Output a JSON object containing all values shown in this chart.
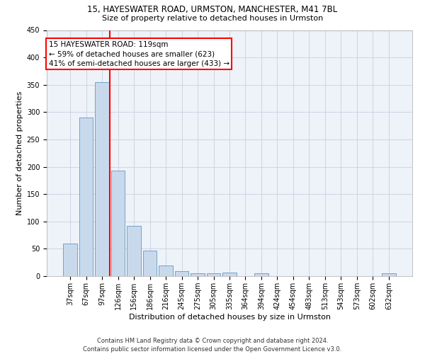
{
  "title1": "15, HAYESWATER ROAD, URMSTON, MANCHESTER, M41 7BL",
  "title2": "Size of property relative to detached houses in Urmston",
  "xlabel": "Distribution of detached houses by size in Urmston",
  "ylabel": "Number of detached properties",
  "bar_labels": [
    "37sqm",
    "67sqm",
    "97sqm",
    "126sqm",
    "156sqm",
    "186sqm",
    "216sqm",
    "245sqm",
    "275sqm",
    "305sqm",
    "335sqm",
    "364sqm",
    "394sqm",
    "424sqm",
    "454sqm",
    "483sqm",
    "513sqm",
    "543sqm",
    "573sqm",
    "602sqm",
    "632sqm"
  ],
  "bar_values": [
    59,
    290,
    355,
    193,
    92,
    47,
    20,
    9,
    5,
    5,
    6,
    0,
    5,
    0,
    0,
    0,
    0,
    0,
    0,
    0,
    5
  ],
  "bar_color": "#c9d9ec",
  "bar_edgecolor": "#6ea4cc",
  "annotation_text": "15 HAYESWATER ROAD: 119sqm\n← 59% of detached houses are smaller (623)\n41% of semi-detached houses are larger (433) →",
  "annotation_box_color": "white",
  "annotation_box_edgecolor": "red",
  "vline_color": "red",
  "vline_x_index": 2.5,
  "ylim": [
    0,
    450
  ],
  "yticks": [
    0,
    50,
    100,
    150,
    200,
    250,
    300,
    350,
    400,
    450
  ],
  "background_color": "#eef2f9",
  "grid_color": "#c8d0df",
  "footer": "Contains HM Land Registry data © Crown copyright and database right 2024.\nContains public sector information licensed under the Open Government Licence v3.0.",
  "title1_fontsize": 8.5,
  "title2_fontsize": 8.0,
  "footer_fontsize": 6.0,
  "ylabel_fontsize": 8.0,
  "xlabel_fontsize": 8.0,
  "tick_fontsize": 7.0,
  "annot_fontsize": 7.5
}
